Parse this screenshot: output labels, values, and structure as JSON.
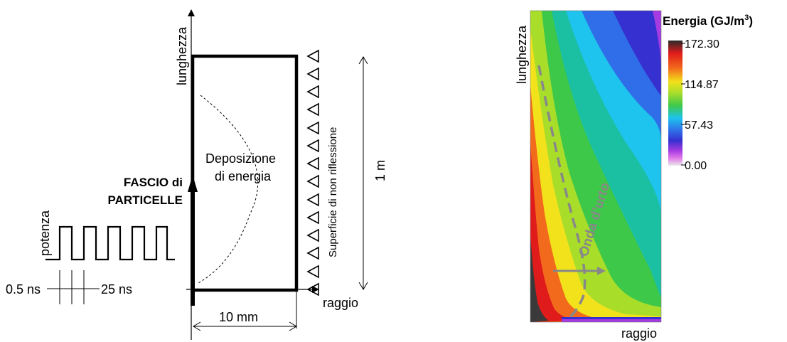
{
  "left_diagram": {
    "axis_vertical_label": "lunghezza",
    "axis_horizontal_label": "raggio",
    "beam_label_line1": "FASCIO di",
    "beam_label_line2": "PARTICELLE",
    "pulse_axis_label": "potenza",
    "pulse_width_label": "0.5 ns",
    "pulse_period_label": "25 ns",
    "deposition_line1": "Deposizione",
    "deposition_line2": "di energia",
    "boundary_label": "Superficie di non riflessione",
    "length_dimension_label": "1 m",
    "radius_dimension_label": "10 mm"
  },
  "right_plot": {
    "axis_vertical_label": "lunghezza",
    "axis_horizontal_label": "raggio",
    "colorbar_title": "Energia (GJ/m",
    "colorbar_title_sup": "3",
    "colorbar_title_end": ")",
    "colorbar_ticks": [
      "172.30",
      "114.87",
      "57.43",
      "0.00"
    ],
    "shock_label": "Onda d’urto",
    "colors": {
      "dark": "#3a3a3a",
      "red": "#e01b1b",
      "orange": "#f26a1b",
      "yellow": "#f2e21b",
      "lime": "#a8dd2a",
      "green": "#3ec84a",
      "teal": "#1bc0a2",
      "cyan": "#1ec3ee",
      "blue": "#2f6ee8",
      "indigo": "#3730d0",
      "magenta": "#a53be0",
      "pink": "#e07be8",
      "light": "#e8e8e8",
      "annotation_gray": "#888888"
    }
  }
}
